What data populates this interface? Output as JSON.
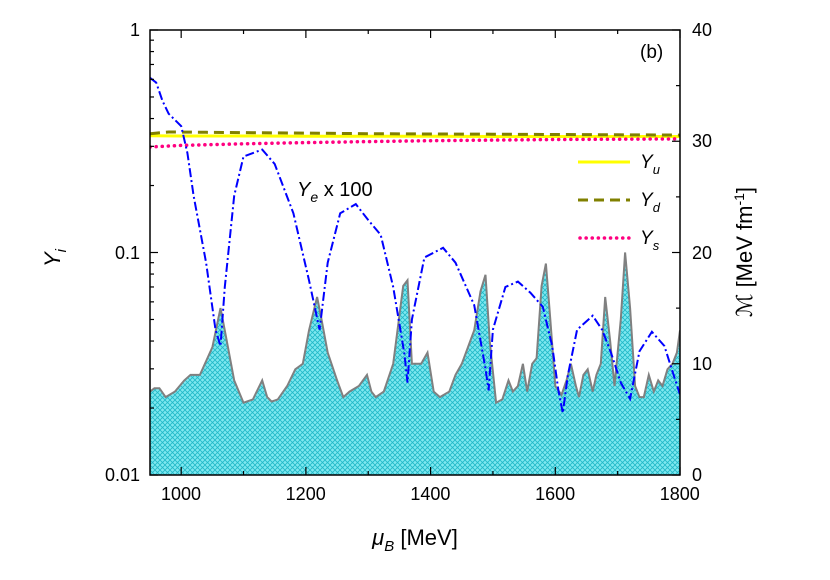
{
  "chart_data": {
    "type": "line",
    "panel_label": "(b)",
    "xlabel": {
      "symbol": "μ",
      "sub": "B",
      "unit": " [MeV]"
    },
    "ylabel_left": {
      "symbol": "Y",
      "sub": "i"
    },
    "ylabel_right": {
      "main": "ℳ [MeV fm",
      "sup": "-1",
      "close": "]"
    },
    "xlim": [
      950,
      1800
    ],
    "ylim_left": [
      0.01,
      1
    ],
    "yscale_left": "log",
    "ylim_right": [
      0,
      40
    ],
    "x_ticks": [
      1000,
      1200,
      1400,
      1600,
      1800
    ],
    "x_tick_labels": [
      "1000",
      "1200",
      "1400",
      "1600",
      "1800"
    ],
    "y_left_ticks": [
      0.01,
      0.1,
      1
    ],
    "y_left_tick_labels": [
      "0.01",
      "0.1",
      "1"
    ],
    "y_right_ticks": [
      0,
      10,
      20,
      30,
      40
    ],
    "y_right_tick_labels": [
      "0",
      "10",
      "20",
      "30",
      "40"
    ],
    "annotation": {
      "sym": "Y",
      "sub": "e",
      "rest": " x 100",
      "x": 1265,
      "y": 0.165
    },
    "legend": {
      "placement": "right",
      "entries": [
        {
          "sym": "Y",
          "sub": "u",
          "series": "Yu"
        },
        {
          "sym": "Y",
          "sub": "d",
          "series": "Yd"
        },
        {
          "sym": "Y",
          "sub": "s",
          "series": "Ys"
        }
      ]
    },
    "colors": {
      "Yu": "#ffff00",
      "Yd": "#808000",
      "Ys": "#ff0080",
      "Ye": "#0000ff",
      "M_line": "#808080",
      "M_fill": "#7fe8f0",
      "M_hatch": "#20b8c8"
    },
    "series": [
      {
        "name": "Yu",
        "axis": "left",
        "style": "solid",
        "x": [
          950,
          1000,
          1100,
          1200,
          1300,
          1400,
          1500,
          1600,
          1700,
          1800
        ],
        "values": [
          0.335,
          0.334,
          0.334,
          0.333,
          0.333,
          0.333,
          0.332,
          0.332,
          0.332,
          0.332
        ]
      },
      {
        "name": "Yd",
        "axis": "left",
        "style": "dash",
        "x": [
          950,
          980,
          1040,
          1100,
          1200,
          1300,
          1400,
          1500,
          1600,
          1700,
          1800
        ],
        "values": [
          0.342,
          0.348,
          0.347,
          0.346,
          0.344,
          0.342,
          0.341,
          0.34,
          0.339,
          0.338,
          0.337
        ]
      },
      {
        "name": "Ys",
        "axis": "left",
        "style": "dot",
        "x": [
          950,
          1000,
          1100,
          1200,
          1300,
          1400,
          1500,
          1600,
          1700,
          1800
        ],
        "values": [
          0.298,
          0.303,
          0.308,
          0.312,
          0.315,
          0.318,
          0.32,
          0.322,
          0.323,
          0.324
        ]
      },
      {
        "name": "Ye x 100",
        "axis": "left",
        "style": "dashdot",
        "x": [
          950,
          960,
          970,
          980,
          1000,
          1010,
          1020,
          1040,
          1055,
          1063,
          1070,
          1085,
          1100,
          1130,
          1150,
          1180,
          1205,
          1222,
          1235,
          1255,
          1280,
          1300,
          1320,
          1340,
          1358,
          1363,
          1370,
          1390,
          1420,
          1440,
          1470,
          1488,
          1493,
          1500,
          1520,
          1540,
          1560,
          1580,
          1595,
          1605,
          1612,
          1620,
          1635,
          1660,
          1675,
          1690,
          1705,
          1720,
          1735,
          1755,
          1775,
          1790,
          1800
        ],
        "values": [
          0.61,
          0.58,
          0.48,
          0.42,
          0.37,
          0.28,
          0.18,
          0.09,
          0.045,
          0.038,
          0.07,
          0.18,
          0.27,
          0.29,
          0.25,
          0.15,
          0.075,
          0.045,
          0.09,
          0.15,
          0.165,
          0.14,
          0.12,
          0.07,
          0.035,
          0.026,
          0.05,
          0.095,
          0.105,
          0.09,
          0.058,
          0.03,
          0.024,
          0.045,
          0.07,
          0.074,
          0.066,
          0.057,
          0.038,
          0.024,
          0.019,
          0.028,
          0.045,
          0.052,
          0.045,
          0.035,
          0.026,
          0.022,
          0.036,
          0.044,
          0.038,
          0.028,
          0.023
        ]
      },
      {
        "name": "M",
        "axis": "right",
        "style": "filled",
        "x": [
          950,
          957,
          965,
          975,
          990,
          1005,
          1015,
          1030,
          1050,
          1063,
          1070,
          1085,
          1100,
          1115,
          1130,
          1138,
          1145,
          1155,
          1170,
          1183,
          1195,
          1205,
          1218,
          1225,
          1235,
          1250,
          1260,
          1270,
          1285,
          1298,
          1305,
          1312,
          1325,
          1340,
          1356,
          1363,
          1370,
          1385,
          1395,
          1405,
          1415,
          1430,
          1440,
          1450,
          1460,
          1470,
          1480,
          1488,
          1495,
          1505,
          1515,
          1525,
          1532,
          1540,
          1548,
          1555,
          1563,
          1570,
          1578,
          1585,
          1592,
          1600,
          1610,
          1618,
          1625,
          1633,
          1638,
          1645,
          1652,
          1660,
          1666,
          1673,
          1680,
          1688,
          1695,
          1705,
          1712,
          1720,
          1728,
          1735,
          1742,
          1750,
          1758,
          1765,
          1772,
          1780,
          1788,
          1795,
          1800
        ],
        "values": [
          7.5,
          7.8,
          7.8,
          7.0,
          7.5,
          8.5,
          9.0,
          9.0,
          11.5,
          15.0,
          13.0,
          8.5,
          6.5,
          6.8,
          8.5,
          7.0,
          6.6,
          6.8,
          8.0,
          9.5,
          10.0,
          13.0,
          16.0,
          14.0,
          11.0,
          8.5,
          7.0,
          7.5,
          8.0,
          9.0,
          7.5,
          7.0,
          7.5,
          10.0,
          17.0,
          17.5,
          10.0,
          10.0,
          11.0,
          7.5,
          7.0,
          7.5,
          9.0,
          10.0,
          11.5,
          13.0,
          16.5,
          18.0,
          12.0,
          6.5,
          6.8,
          8.5,
          7.5,
          8.0,
          10.0,
          7.5,
          10.0,
          10.5,
          17.0,
          19.0,
          14.0,
          8.0,
          7.2,
          8.5,
          10.0,
          8.0,
          7.0,
          9.0,
          9.5,
          7.5,
          9.0,
          10.0,
          16.0,
          12.0,
          8.0,
          14.0,
          20.0,
          15.0,
          8.0,
          7.0,
          7.0,
          9.0,
          7.5,
          8.5,
          8.0,
          9.5,
          10.0,
          11.0,
          13.0
        ]
      }
    ]
  }
}
